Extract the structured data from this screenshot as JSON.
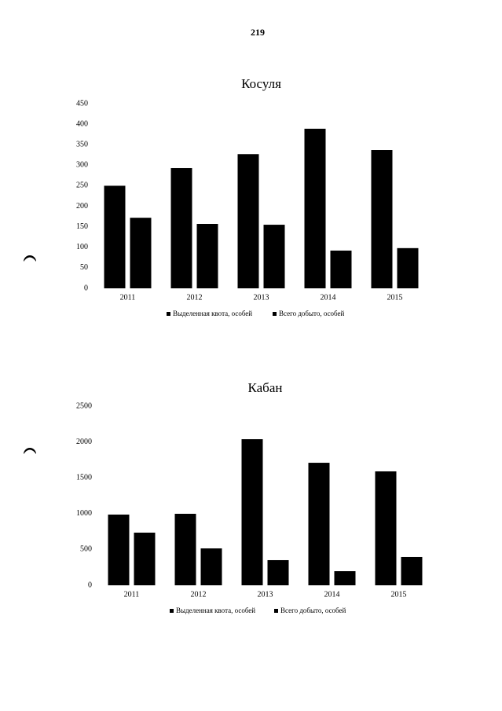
{
  "page_number": "219",
  "chart_data": [
    {
      "type": "bar",
      "title": "Косуля",
      "categories": [
        "2011",
        "2012",
        "2013",
        "2014",
        "2015"
      ],
      "series": [
        {
          "name": "Выделенная квота, особей",
          "color": "#000000",
          "values": [
            250,
            293,
            327,
            389,
            337
          ]
        },
        {
          "name": "Всего добыто, особей",
          "color": "#000000",
          "values": [
            172,
            157,
            155,
            92,
            98
          ]
        }
      ],
      "ylim": [
        0,
        450
      ],
      "yticks": [
        0,
        50,
        100,
        150,
        200,
        250,
        300,
        350,
        400,
        450
      ],
      "grid": false,
      "legend": "bottom"
    },
    {
      "type": "bar",
      "title": "Кабан",
      "categories": [
        "2011",
        "2012",
        "2013",
        "2014",
        "2015"
      ],
      "series": [
        {
          "name": "Выделенная квота, особей",
          "color": "#000000",
          "values": [
            987,
            998,
            2039,
            1710,
            1590
          ]
        },
        {
          "name": "Всего добыто, особей",
          "color": "#000000",
          "values": [
            735,
            515,
            351,
            197,
            395
          ]
        }
      ],
      "ylim": [
        0,
        2500
      ],
      "yticks": [
        0,
        500,
        1000,
        1500,
        2000,
        2500
      ],
      "grid": false,
      "legend": "bottom"
    }
  ]
}
